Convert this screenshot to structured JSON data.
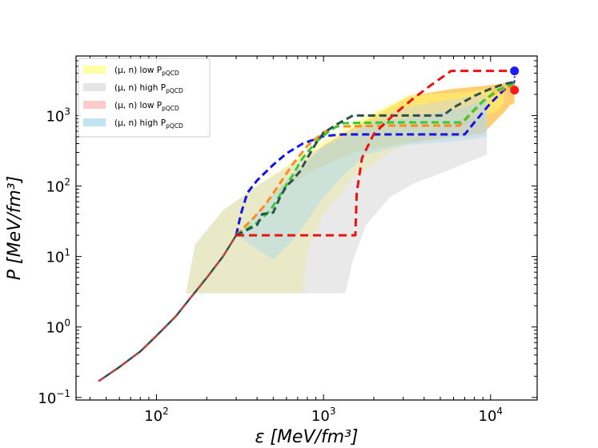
{
  "chart_data": {
    "type": "line",
    "title": "",
    "xlabel": "ε [MeV/fm³]",
    "ylabel": "P [MeV/fm³]",
    "xscale": "log",
    "yscale": "log",
    "xlim": [
      33,
      19000
    ],
    "ylim": [
      0.092,
      7000
    ],
    "x_ticks": [
      {
        "value": 100,
        "base": "10",
        "exp": "2"
      },
      {
        "value": 1000,
        "base": "10",
        "exp": "3"
      },
      {
        "value": 10000,
        "base": "10",
        "exp": "4"
      }
    ],
    "y_ticks": [
      {
        "value": 0.1,
        "base": "10",
        "exp": "−1"
      },
      {
        "value": 1,
        "base": "10",
        "exp": "0"
      },
      {
        "value": 10,
        "base": "10",
        "exp": "1"
      },
      {
        "value": 100,
        "base": "10",
        "exp": "2"
      },
      {
        "value": 1000,
        "base": "10",
        "exp": "3"
      }
    ],
    "legend": {
      "position": "top-left",
      "entries": [
        {
          "label": "(μ, n) low P",
          "sub": "pQCD",
          "color": "#ffff66"
        },
        {
          "label": "(μ, n) high P",
          "sub": "pQCD",
          "color": "#d3d3d3"
        },
        {
          "label": "(μ, n) low P",
          "sub": "pQCD",
          "color": "#ffb3b3"
        },
        {
          "label": "(μ, n) high P",
          "sub": "pQCD",
          "color": "#a8d8ea"
        }
      ]
    },
    "bands": [
      {
        "name": "orange-band",
        "color": "#ffa500",
        "opacity": 0.55,
        "upper": [
          [
            300,
            20
          ],
          [
            600,
            120
          ],
          [
            1000,
            380
          ],
          [
            2000,
            1000
          ],
          [
            3300,
            1900
          ],
          [
            6000,
            2400
          ],
          [
            10000,
            2700
          ],
          [
            13500,
            3000
          ],
          [
            13900,
            3200
          ]
        ],
        "lower": [
          [
            13900,
            1500
          ],
          [
            13000,
            1400
          ],
          [
            12000,
            1100
          ],
          [
            11000,
            900
          ],
          [
            9000,
            550
          ],
          [
            6000,
            500
          ],
          [
            3000,
            400
          ],
          [
            1500,
            300
          ],
          [
            800,
            150
          ],
          [
            500,
            70
          ],
          [
            300,
            20
          ]
        ]
      },
      {
        "name": "yellow-band",
        "color": "#ffff66",
        "opacity": 0.45,
        "upper": [
          [
            150,
            3
          ],
          [
            170,
            14
          ],
          [
            250,
            45
          ],
          [
            400,
            100
          ],
          [
            700,
            250
          ],
          [
            1500,
            800
          ],
          [
            3300,
            2000
          ],
          [
            6000,
            2100
          ],
          [
            9000,
            2300
          ]
        ],
        "lower": [
          [
            12000,
            2000
          ],
          [
            12000,
            1500
          ],
          [
            11500,
            1300
          ],
          [
            10500,
            1100
          ],
          [
            8000,
            950
          ],
          [
            5000,
            700
          ],
          [
            2500,
            300
          ],
          [
            1500,
            130
          ],
          [
            1000,
            40
          ],
          [
            800,
            12
          ],
          [
            750,
            3
          ]
        ]
      },
      {
        "name": "gray-band",
        "color": "#d3d3d3",
        "opacity": 0.5,
        "upper": [
          [
            150,
            3
          ],
          [
            170,
            15
          ],
          [
            250,
            45
          ],
          [
            400,
            100
          ],
          [
            700,
            230
          ],
          [
            1500,
            650
          ],
          [
            3000,
            1300
          ],
          [
            5000,
            1600
          ],
          [
            9500,
            2000
          ]
        ],
        "lower": [
          [
            9500,
            280
          ],
          [
            7000,
            210
          ],
          [
            5000,
            150
          ],
          [
            3500,
            110
          ],
          [
            2500,
            70
          ],
          [
            1800,
            28
          ],
          [
            1500,
            9
          ],
          [
            1350,
            3
          ]
        ]
      },
      {
        "name": "blue-band",
        "color": "#a8d8ea",
        "opacity": 0.45,
        "upper": [
          [
            300,
            20
          ],
          [
            600,
            120
          ],
          [
            1000,
            360
          ],
          [
            2000,
            800
          ],
          [
            4000,
            1000
          ],
          [
            7000,
            1300
          ],
          [
            9500,
            1700
          ]
        ],
        "lower": [
          [
            9500,
            500
          ],
          [
            6000,
            430
          ],
          [
            3000,
            380
          ],
          [
            1800,
            280
          ],
          [
            1300,
            140
          ],
          [
            950,
            60
          ],
          [
            700,
            20
          ],
          [
            500,
            9
          ],
          [
            300,
            20
          ]
        ]
      }
    ],
    "series": [
      {
        "name": "base-curve",
        "color": "#2f4f4f",
        "dash": "solid",
        "width": 2.5,
        "points": [
          [
            45,
            0.17
          ],
          [
            60,
            0.27
          ],
          [
            80,
            0.45
          ],
          [
            100,
            0.75
          ],
          [
            130,
            1.4
          ],
          [
            160,
            2.6
          ],
          [
            200,
            5
          ],
          [
            250,
            10
          ],
          [
            300,
            20
          ]
        ]
      },
      {
        "name": "base-curve-overlay",
        "color": "#e53935",
        "dash": "10,7",
        "width": 1.6,
        "points": [
          [
            45,
            0.17
          ],
          [
            60,
            0.27
          ],
          [
            80,
            0.45
          ],
          [
            100,
            0.75
          ],
          [
            130,
            1.4
          ],
          [
            160,
            2.6
          ],
          [
            200,
            5
          ],
          [
            250,
            10
          ],
          [
            300,
            20
          ]
        ]
      },
      {
        "name": "blue-dashed",
        "color": "#1414e6",
        "dash": "9,5",
        "width": 3,
        "points": [
          [
            300,
            20
          ],
          [
            320,
            40
          ],
          [
            350,
            80
          ],
          [
            400,
            120
          ],
          [
            500,
            200
          ],
          [
            600,
            290
          ],
          [
            750,
            400
          ],
          [
            1000,
            510
          ],
          [
            1300,
            540
          ],
          [
            3000,
            540
          ],
          [
            7000,
            540
          ],
          [
            8000,
            800
          ],
          [
            10000,
            1500
          ],
          [
            12000,
            2300
          ],
          [
            13900,
            3000
          ]
        ]
      },
      {
        "name": "orange-dashed",
        "color": "#ff8c1a",
        "dash": "9,5",
        "width": 3,
        "points": [
          [
            300,
            20
          ],
          [
            380,
            35
          ],
          [
            450,
            55
          ],
          [
            550,
            110
          ],
          [
            650,
            200
          ],
          [
            800,
            370
          ],
          [
            1000,
            580
          ],
          [
            1200,
            700
          ],
          [
            2500,
            720
          ],
          [
            6500,
            720
          ],
          [
            7500,
            1000
          ],
          [
            9000,
            1600
          ],
          [
            11000,
            2200
          ],
          [
            13900,
            2700
          ]
        ]
      },
      {
        "name": "green-dashed",
        "color": "#33cc33",
        "dash": "9,5",
        "width": 3,
        "points": [
          [
            300,
            20
          ],
          [
            400,
            30
          ],
          [
            480,
            45
          ],
          [
            550,
            75
          ],
          [
            650,
            140
          ],
          [
            750,
            250
          ],
          [
            900,
            420
          ],
          [
            1100,
            620
          ],
          [
            1300,
            780
          ],
          [
            2500,
            800
          ],
          [
            6800,
            800
          ],
          [
            7500,
            1050
          ],
          [
            9000,
            1600
          ],
          [
            11000,
            2300
          ],
          [
            13900,
            2900
          ]
        ]
      },
      {
        "name": "darkgray-dashed",
        "color": "#2f4f4f",
        "dash": "9,5",
        "width": 3,
        "points": [
          [
            300,
            20
          ],
          [
            400,
            28
          ],
          [
            430,
            40
          ],
          [
            500,
            42
          ],
          [
            550,
            70
          ],
          [
            600,
            100
          ],
          [
            650,
            120
          ],
          [
            720,
            160
          ],
          [
            800,
            250
          ],
          [
            900,
            400
          ],
          [
            1000,
            570
          ],
          [
            1200,
            750
          ],
          [
            1500,
            1000
          ],
          [
            3000,
            1000
          ],
          [
            5200,
            1000
          ],
          [
            6000,
            1300
          ],
          [
            8000,
            1900
          ],
          [
            10000,
            2400
          ],
          [
            12000,
            2800
          ],
          [
            13900,
            3000
          ]
        ]
      },
      {
        "name": "red-dashed",
        "color": "#ee1111",
        "dash": "10,6",
        "width": 3,
        "points": [
          [
            300,
            20
          ],
          [
            1550,
            20
          ],
          [
            1580,
            80
          ],
          [
            1700,
            250
          ],
          [
            2000,
            550
          ],
          [
            2600,
            1000
          ],
          [
            3400,
            1700
          ],
          [
            4300,
            2600
          ],
          [
            5800,
            4300
          ],
          [
            13900,
            4300
          ]
        ]
      },
      {
        "name": "blue-to-end",
        "color": "#1414e6",
        "dash": "2,3",
        "width": 2,
        "points": [
          [
            13900,
            3000
          ],
          [
            13900,
            4300
          ]
        ]
      }
    ],
    "markers": [
      {
        "name": "blue-endpoint",
        "x": 13900,
        "y": 4300,
        "color": "#1a1aff"
      },
      {
        "name": "red-endpoint",
        "x": 13900,
        "y": 2300,
        "color": "#ff1a1a"
      }
    ]
  }
}
